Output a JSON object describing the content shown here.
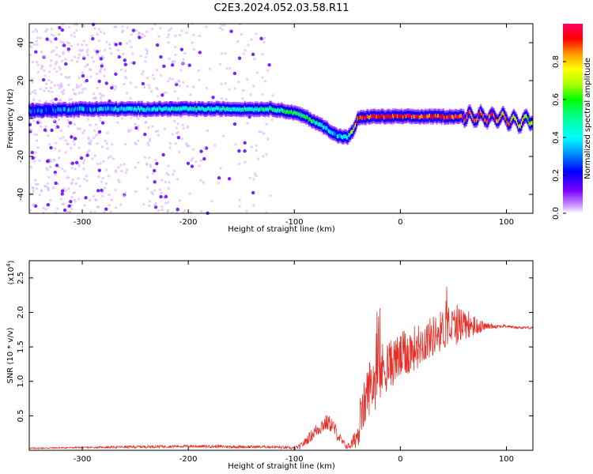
{
  "title": "C2E3.2024.052.03.58.R11",
  "colorbar": {
    "label": "Normalized spectral amplitude",
    "ticks": [
      "0.0",
      "0.2",
      "0.4",
      "0.6",
      "0.8"
    ],
    "tick_values": [
      0.0,
      0.2,
      0.4,
      0.6,
      0.8
    ],
    "range": [
      0,
      1
    ]
  },
  "chart_data": [
    {
      "type": "heatmap",
      "title": "",
      "xlabel": "Height of straight line (km)",
      "ylabel": "Frequency (Hz)",
      "xlim": [
        -350,
        125
      ],
      "ylim": [
        -50,
        50
      ],
      "xticks": [
        -300,
        -200,
        -100,
        0,
        100
      ],
      "xtick_labels": [
        "-300",
        "-200",
        "-100",
        "0",
        "100"
      ],
      "yticks": [
        -40,
        -20,
        0,
        20,
        40
      ],
      "ytick_labels": [
        "-40",
        "-20",
        "0",
        "20",
        "40"
      ],
      "colormap": "rainbow",
      "ridge": {
        "x": [
          -350,
          -300,
          -250,
          -200,
          -150,
          -120,
          -100,
          -90,
          -80,
          -70,
          -60,
          -50,
          -45,
          -40,
          -30,
          -20,
          0,
          25,
          50,
          75,
          100,
          110,
          125
        ],
        "frequency": [
          4,
          5,
          5,
          5,
          5,
          5,
          3,
          1,
          -2,
          -5,
          -9,
          -10,
          -7,
          0,
          1,
          1,
          1,
          1,
          1,
          1,
          0,
          -2,
          0
        ],
        "amplitude": [
          0.3,
          0.35,
          0.45,
          0.5,
          0.5,
          0.55,
          0.6,
          0.6,
          0.55,
          0.45,
          0.4,
          0.45,
          0.7,
          0.9,
          0.95,
          0.95,
          0.95,
          0.95,
          0.95,
          0.95,
          0.9,
          0.8,
          0.7
        ]
      }
    },
    {
      "type": "line",
      "title": "",
      "xlabel": "Height of straight line (km)",
      "ylabel": "SNR (10 * v/v)",
      "scale_label": "(x10",
      "scale_exponent": "4",
      "scale_close": ")",
      "xlim": [
        -350,
        125
      ],
      "ylim": [
        0,
        2.75
      ],
      "xticks": [
        -300,
        -200,
        -100,
        0,
        100
      ],
      "xtick_labels": [
        "-300",
        "-200",
        "-100",
        "0",
        "100"
      ],
      "yticks": [
        0.5,
        1.0,
        1.5,
        2.0,
        2.5
      ],
      "ytick_labels": [
        "0.5",
        "1.0",
        "1.5",
        "2.0",
        "2.5"
      ],
      "series": [
        {
          "color": "#e8302a",
          "x": [
            -350,
            -300,
            -250,
            -200,
            -150,
            -120,
            -110,
            -100,
            -95,
            -90,
            -85,
            -80,
            -75,
            -70,
            -65,
            -60,
            -55,
            -50,
            -45,
            -40,
            -35,
            -30,
            -25,
            -20,
            -15,
            -10,
            -5,
            0,
            5,
            10,
            20,
            30,
            40,
            50,
            60,
            70,
            80,
            90,
            100,
            110,
            125
          ],
          "y": [
            0.03,
            0.04,
            0.05,
            0.06,
            0.05,
            0.05,
            0.04,
            0.03,
            0.05,
            0.12,
            0.2,
            0.28,
            0.35,
            0.4,
            0.38,
            0.25,
            0.12,
            0.05,
            0.1,
            0.25,
            0.6,
            0.9,
            1.0,
            1.1,
            1.2,
            1.25,
            1.3,
            1.35,
            1.4,
            1.45,
            1.55,
            1.65,
            1.75,
            1.8,
            1.85,
            1.8,
            1.8,
            1.8,
            1.8,
            1.78,
            1.78
          ],
          "noise_amplitude": [
            0.01,
            0.01,
            0.02,
            0.02,
            0.02,
            0.02,
            0.02,
            0.02,
            0.04,
            0.06,
            0.08,
            0.1,
            0.12,
            0.12,
            0.12,
            0.1,
            0.06,
            0.04,
            0.1,
            0.2,
            0.35,
            0.4,
            0.45,
            0.45,
            0.4,
            0.35,
            0.35,
            0.35,
            0.35,
            0.35,
            0.3,
            0.3,
            0.3,
            0.3,
            0.25,
            0.15,
            0.05,
            0.03,
            0.02,
            0.02,
            0.02
          ]
        }
      ]
    }
  ]
}
